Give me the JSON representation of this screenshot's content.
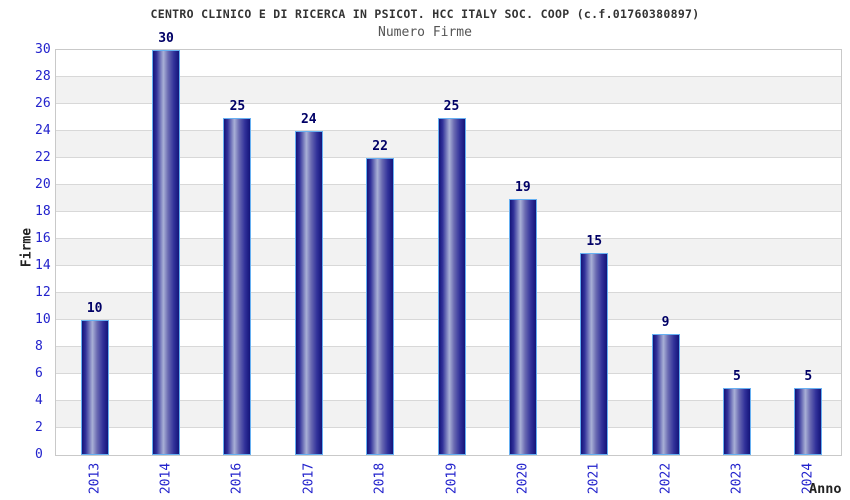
{
  "chart_data": {
    "type": "bar",
    "title": "CENTRO CLINICO E DI RICERCA IN PSICOT. HCC ITALY SOC. COOP (c.f.01760380897)",
    "subtitle": "Numero Firme",
    "xlabel": "Anno",
    "ylabel": "Firme",
    "categories": [
      "2013",
      "2014",
      "2016",
      "2017",
      "2018",
      "2019",
      "2020",
      "2021",
      "2022",
      "2023",
      "2024"
    ],
    "values": [
      10,
      30,
      25,
      24,
      22,
      25,
      19,
      15,
      9,
      5,
      5
    ],
    "ylim": [
      0,
      30
    ],
    "ytick_step": 2,
    "grid": "horizontal-bands",
    "legend_position": "none",
    "colors": {
      "background": "#ffffff",
      "title": "#333333",
      "subtitle": "#555555",
      "axis_tick_label": "#2222cc",
      "value_label": "#000066",
      "axis_label": "#222222",
      "band_alt": "#f2f2f2",
      "band_main": "#ffffff",
      "gridline": "#d8d8d8",
      "plot_border": "#c9c9c9",
      "bar_border": "#66b0f2",
      "bar_dark": "#14147a",
      "bar_mid": "#32329a",
      "bar_light": "#a9b0d6"
    }
  }
}
